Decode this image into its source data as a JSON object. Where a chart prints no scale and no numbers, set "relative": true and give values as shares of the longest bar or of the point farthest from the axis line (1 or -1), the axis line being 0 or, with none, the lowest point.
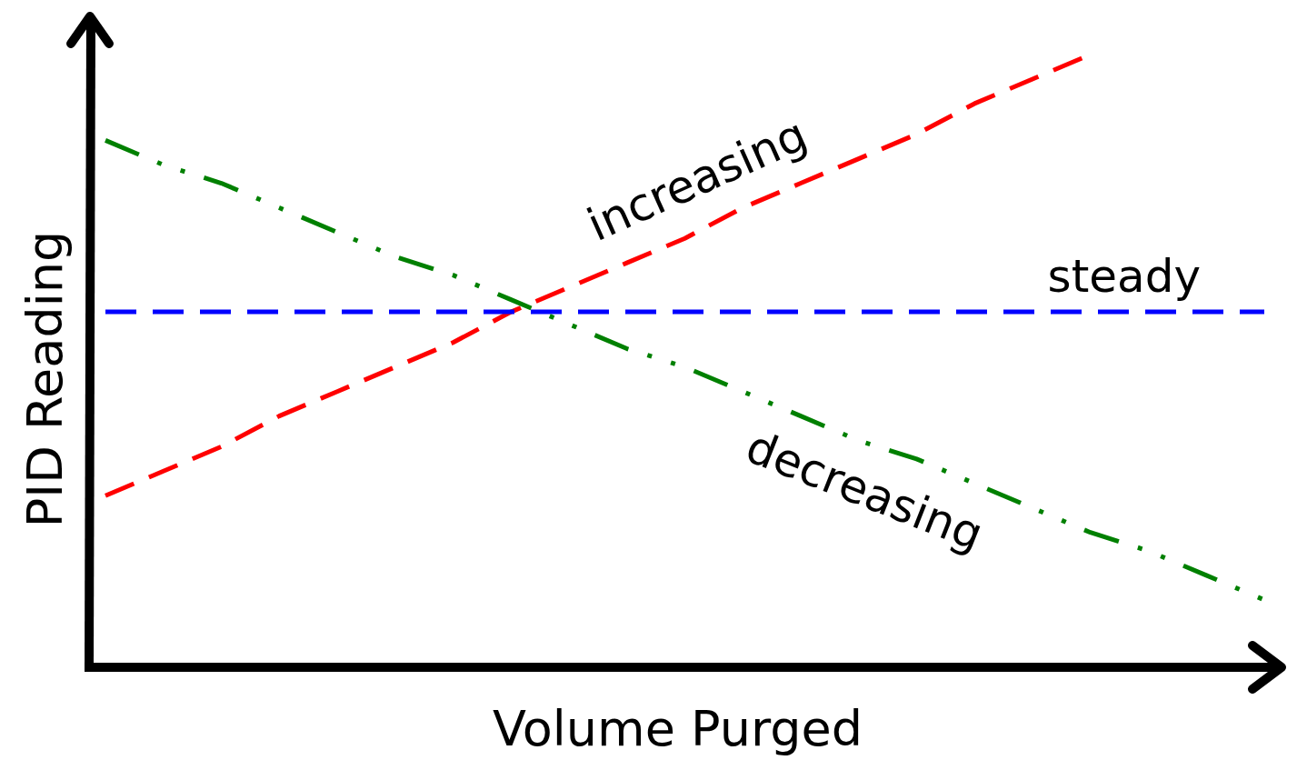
{
  "chart_data": {
    "type": "line",
    "relative": true,
    "xlabel": "Volume Purged",
    "ylabel": "PID Reading",
    "legend": false,
    "categories": [
      null,
      null,
      null,
      null,
      null,
      null,
      null,
      null,
      null,
      null,
      null,
      null,
      null,
      null,
      null,
      null,
      null,
      null,
      null,
      null,
      null
    ],
    "series": [
      {
        "name": "increasing",
        "color": "#ff0000",
        "line_style": "dashed",
        "values": [
          0.28,
          0.32,
          0.36,
          0.41,
          0.45,
          0.49,
          0.53,
          0.58,
          0.62,
          0.66,
          0.7,
          0.75,
          0.79,
          0.83,
          0.87,
          0.92,
          0.96,
          1.0,
          null,
          null,
          null
        ]
      },
      {
        "name": "steady",
        "color": "#0000ff",
        "line_style": "dashed",
        "values": [
          0.58,
          0.58,
          0.58,
          0.58,
          0.58,
          0.58,
          0.58,
          0.58,
          0.58,
          0.58,
          0.58,
          0.58,
          0.58,
          0.58,
          0.58,
          0.58,
          0.58,
          0.58,
          0.58,
          0.58,
          0.58
        ]
      },
      {
        "name": "decreasing",
        "color": "#008000",
        "line_style": "dotted",
        "values": [
          0.86,
          0.82,
          0.79,
          0.75,
          0.71,
          0.67,
          0.64,
          0.6,
          0.56,
          0.52,
          0.49,
          0.45,
          0.41,
          0.37,
          0.34,
          0.3,
          0.26,
          0.22,
          0.19,
          0.15,
          0.11
        ]
      }
    ]
  }
}
